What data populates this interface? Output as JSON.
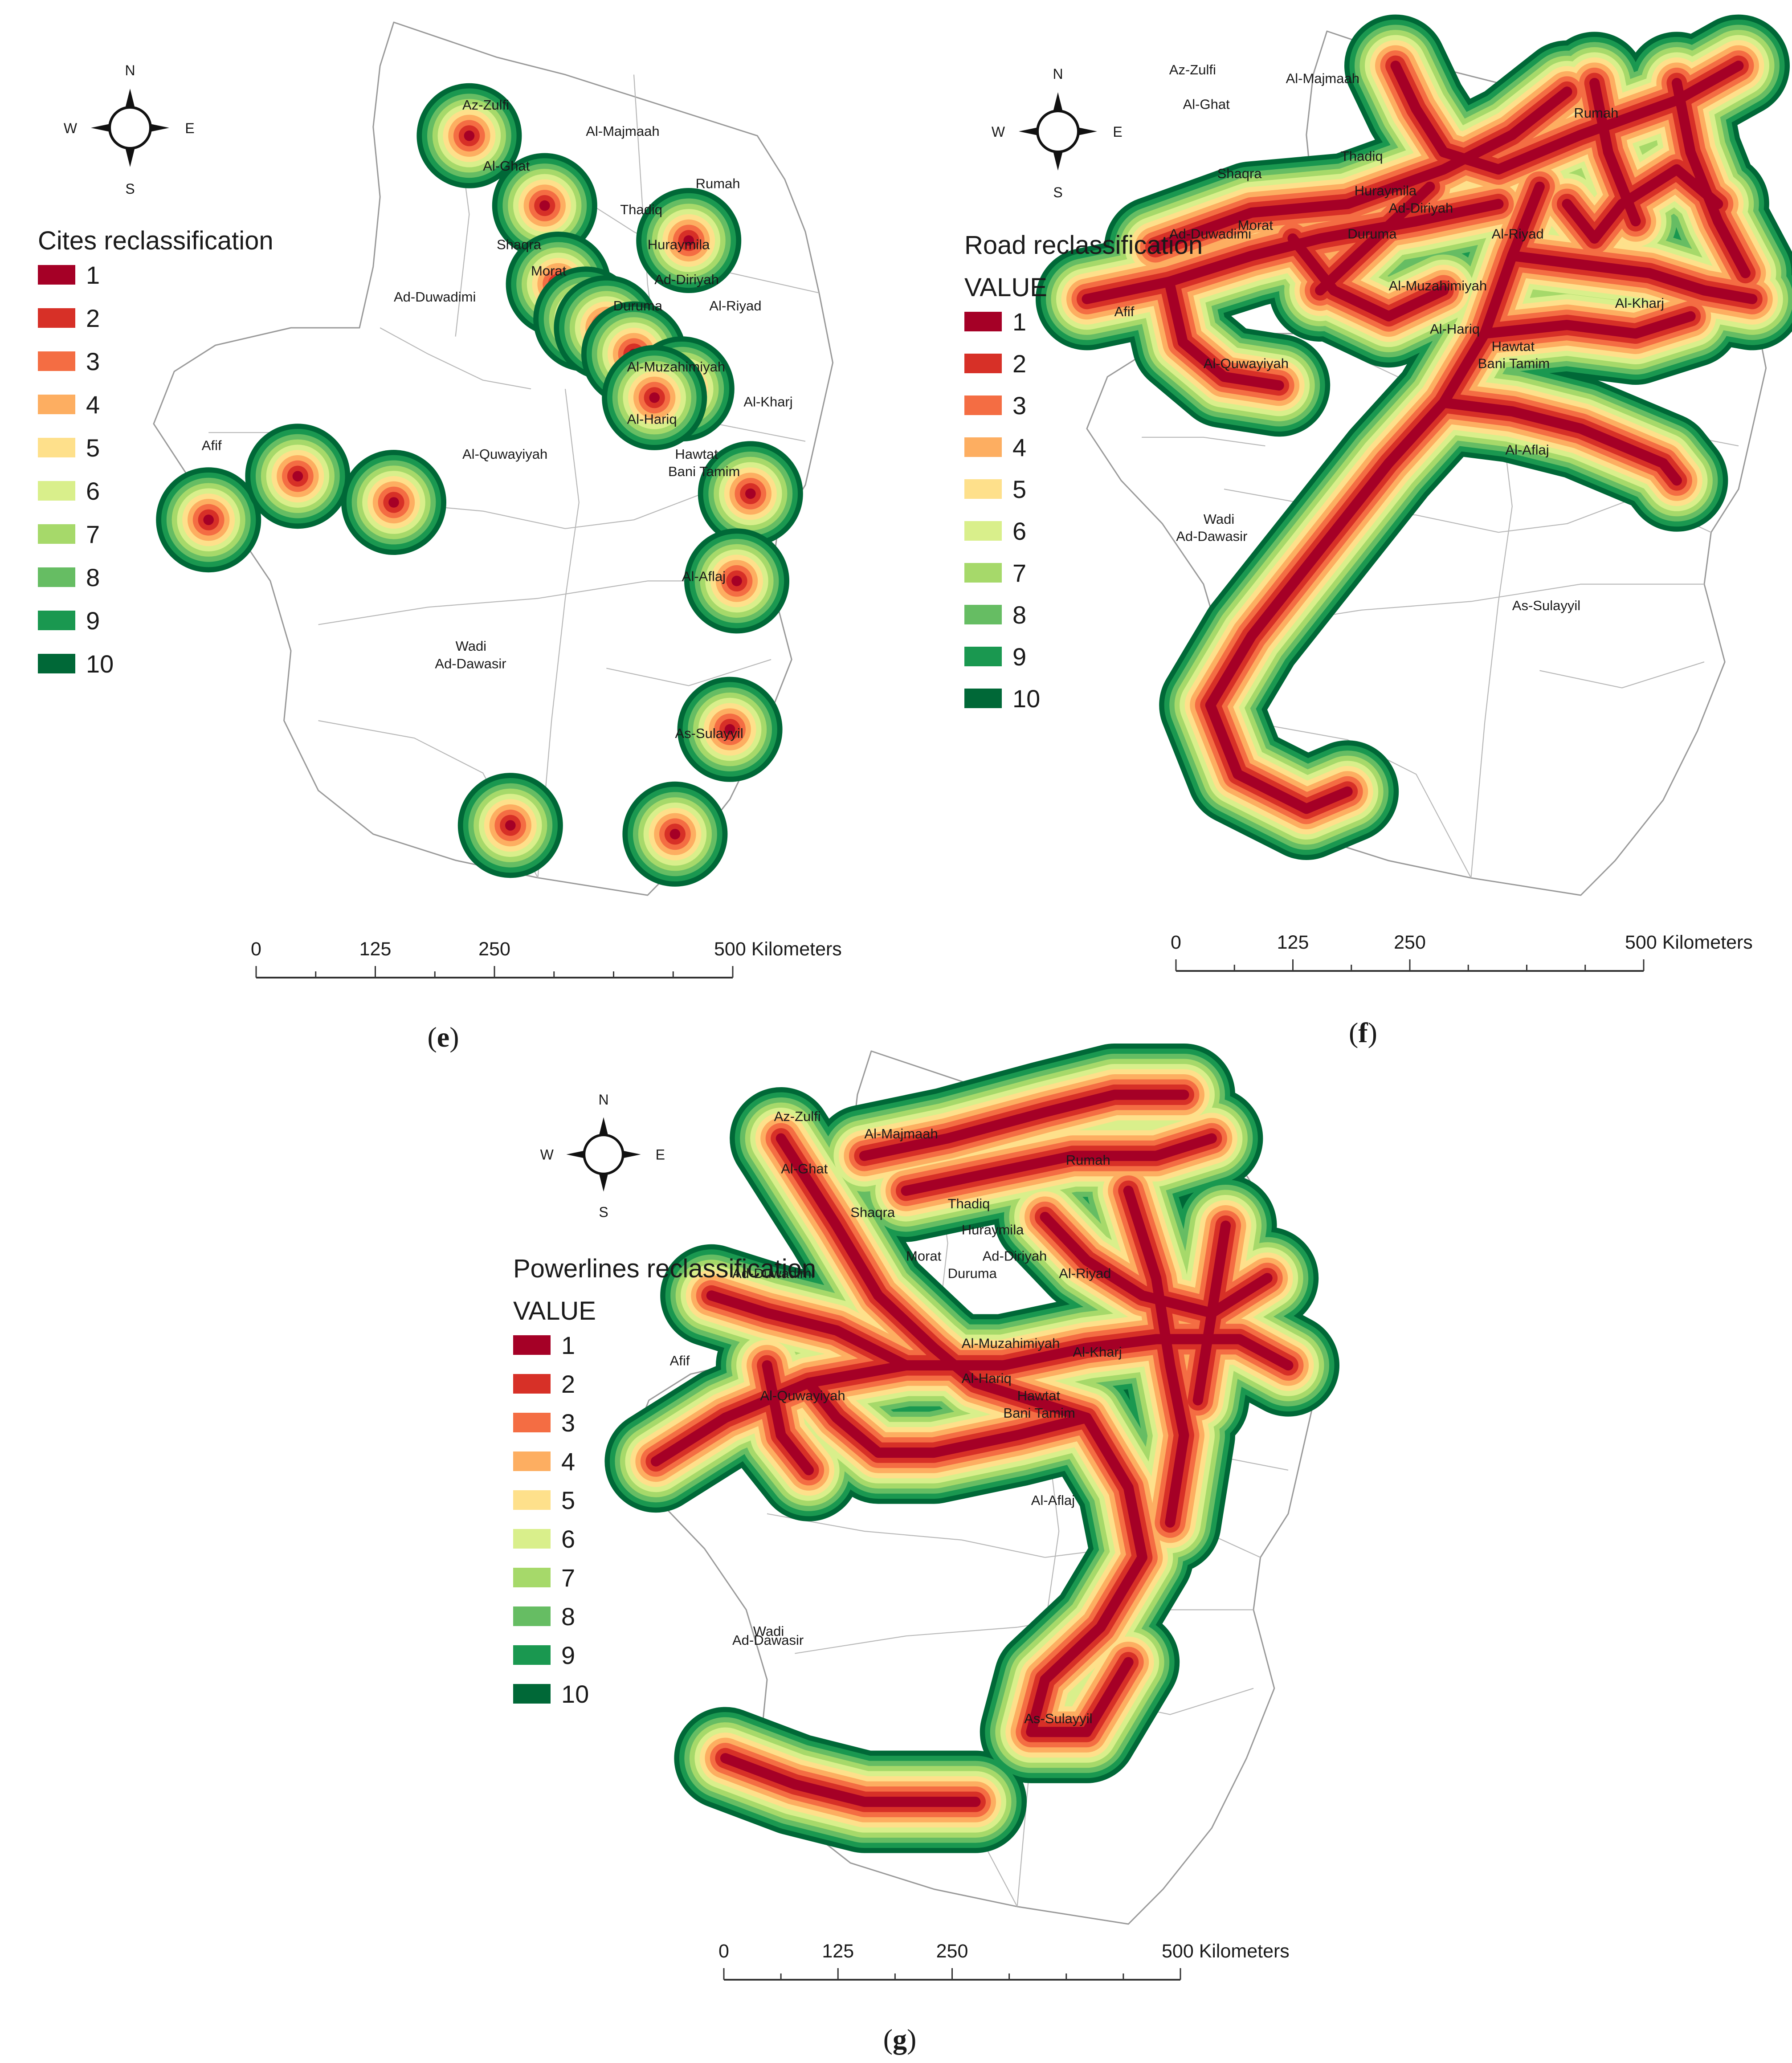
{
  "colors": {
    "classes": [
      "#a50026",
      "#d73027",
      "#f46d43",
      "#fdae61",
      "#fee08b",
      "#d9ef8b",
      "#a6d96a",
      "#66bd63",
      "#1a9850",
      "#006837"
    ],
    "region_stroke": "#9a9a9a",
    "district_stroke": "#b8b8b8"
  },
  "compass": {
    "n": "N",
    "s": "S",
    "e": "E",
    "w": "W"
  },
  "panels": [
    {
      "id": "e",
      "caption_open": "(",
      "caption_letter": "e",
      "caption_close": ")",
      "legend_title": "Cites reclassification",
      "legend_subtitle": "",
      "legend_values": [
        "1",
        "2",
        "3",
        "4",
        "5",
        "6",
        "7",
        "8",
        "9",
        "10"
      ],
      "scale_ticks": [
        "0",
        "125",
        "250",
        "500 Kilometers"
      ],
      "cities": [
        "Az-Zulfi",
        "Al-Majmaah",
        "Al-Ghat",
        "Rumah",
        "Thadiq",
        "Shaqra",
        "Huraymila",
        "Morat",
        "Ad-Diriyah",
        "Duruma",
        "Al-Riyad",
        "Ad-Duwadimi",
        "Al-Muzahimiyah",
        "Al-Kharj",
        "Afif",
        "Al-Hariq",
        "Hawtat",
        "Bani Tamim",
        "Al-Quwayiyah",
        "Al-Aflaj",
        "Wadi",
        "Ad-Dawasir",
        "As-Sulayyil"
      ]
    },
    {
      "id": "f",
      "caption_open": "(",
      "caption_letter": "f",
      "caption_close": ")",
      "legend_title": "Road reclassification",
      "legend_subtitle": "VALUE",
      "legend_values": [
        "1",
        "2",
        "3",
        "4",
        "5",
        "6",
        "7",
        "8",
        "9",
        "10"
      ],
      "scale_ticks": [
        "0",
        "125",
        "250",
        "500 Kilometers"
      ],
      "cities": [
        "Az-Zulfi",
        "Al-Majmaah",
        "Al-Ghat",
        "Rumah",
        "Thadiq",
        "Shaqra",
        "Huraymila",
        "Morat",
        "Ad-Diriyah",
        "Duruma",
        "Al-Riyad",
        "Ad-Duwadimi",
        "Al-Muzahimiyah",
        "Al-Kharj",
        "Afif",
        "Al-Hariq",
        "Hawtat",
        "Bani Tamim",
        "Al-Quwayiyah",
        "Al-Aflaj",
        "Wadi",
        "Ad-Dawasir",
        "As-Sulayyil"
      ]
    },
    {
      "id": "g",
      "caption_open": "(",
      "caption_letter": "g",
      "caption_close": ")",
      "legend_title": "Powerlines reclassification",
      "legend_subtitle": "VALUE",
      "legend_values": [
        "1",
        "2",
        "3",
        "4",
        "5",
        "6",
        "7",
        "8",
        "9",
        "10"
      ],
      "scale_ticks": [
        "0",
        "125",
        "250",
        "500 Kilometers"
      ],
      "cities": [
        "Az-Zulfi",
        "Al-Majmaah",
        "Al-Ghat",
        "Rumah",
        "Shaqra",
        "Thadiq",
        "Huraymila",
        "Morat",
        "Ad-Diriyah",
        "Duruma",
        "Al-Riyad",
        "Ad-Duwadimi",
        "Al-Muzahimiyah",
        "Al-Kharj",
        "Afif",
        "Al-Hariq",
        "Hawtat",
        "Bani Tamim",
        "Al-Quwayiyah",
        "Al-Aflaj",
        "Wadi",
        "Ad-Dawasir",
        "As-Sulayyil"
      ]
    }
  ]
}
